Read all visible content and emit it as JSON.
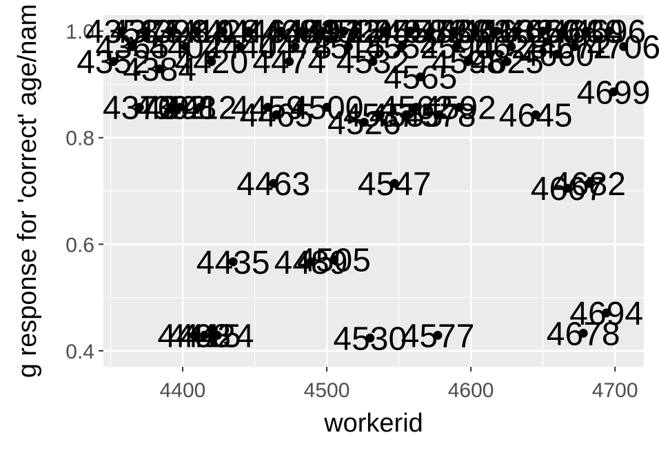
{
  "chart_data": {
    "type": "scatter",
    "title": "",
    "xlabel": "workerid",
    "ylabel": "g response for 'correct' age/nam",
    "xlim": [
      4345,
      4720
    ],
    "ylim": [
      0.37,
      1.03
    ],
    "x_ticks": [
      4400,
      4500,
      4600,
      4700
    ],
    "x_tick_labels": [
      "4400",
      "4500",
      "4600",
      "4700"
    ],
    "y_ticks": [
      0.4,
      0.6,
      0.8,
      1.0
    ],
    "y_tick_labels": [
      "0.4",
      "0.6",
      "0.8",
      "1.0"
    ],
    "grid": true,
    "legend": "none",
    "colors": {
      "panel": "#ebebeb",
      "grid_major": "#ffffff",
      "point": "#000000",
      "label": "#000000",
      "tick_text": "#4d4d4d"
    },
    "points": [
      {
        "x": 4370,
        "y": 0.857,
        "label": "4370"
      },
      {
        "x": 4392,
        "y": 0.857,
        "label": "4392"
      },
      {
        "x": 4398,
        "y": 0.857,
        "label": "4398"
      },
      {
        "x": 4412,
        "y": 0.857,
        "label": "4412"
      },
      {
        "x": 4459,
        "y": 0.857,
        "label": "4459"
      },
      {
        "x": 4465,
        "y": 0.843,
        "label": "4465"
      },
      {
        "x": 4500,
        "y": 0.857,
        "label": "4500"
      },
      {
        "x": 4526,
        "y": 0.829,
        "label": "4526"
      },
      {
        "x": 4537,
        "y": 0.843,
        "label": "4537"
      },
      {
        "x": 4555,
        "y": 0.843,
        "label": "4555"
      },
      {
        "x": 4562,
        "y": 0.857,
        "label": "4562"
      },
      {
        "x": 4578,
        "y": 0.843,
        "label": "4578"
      },
      {
        "x": 4592,
        "y": 0.857,
        "label": "4592"
      },
      {
        "x": 4645,
        "y": 0.843,
        "label": "4645"
      },
      {
        "x": 4565,
        "y": 0.914,
        "label": "4565"
      },
      {
        "x": 4384,
        "y": 0.929,
        "label": "4384"
      },
      {
        "x": 4625,
        "y": 0.943,
        "label": "4625"
      },
      {
        "x": 4699,
        "y": 0.886,
        "label": "4699"
      },
      {
        "x": 4463,
        "y": 0.714,
        "label": "4463"
      },
      {
        "x": 4547,
        "y": 0.714,
        "label": "4547"
      },
      {
        "x": 4667,
        "y": 0.705,
        "label": "4667"
      },
      {
        "x": 4682,
        "y": 0.714,
        "label": "4682"
      },
      {
        "x": 4435,
        "y": 0.567,
        "label": "4435"
      },
      {
        "x": 4489,
        "y": 0.567,
        "label": "4489"
      },
      {
        "x": 4505,
        "y": 0.571,
        "label": "4505"
      },
      {
        "x": 4694,
        "y": 0.471,
        "label": "4694"
      },
      {
        "x": 4678,
        "y": 0.433,
        "label": "4678"
      },
      {
        "x": 4408,
        "y": 0.429,
        "label": "4408"
      },
      {
        "x": 4415,
        "y": 0.429,
        "label": "4415"
      },
      {
        "x": 4424,
        "y": 0.429,
        "label": "4424"
      },
      {
        "x": 4530,
        "y": 0.424,
        "label": "4530"
      },
      {
        "x": 4577,
        "y": 0.429,
        "label": "4577"
      },
      {
        "x": 4358,
        "y": 1.0,
        "label": "4358"
      },
      {
        "x": 4375,
        "y": 1.0,
        "label": "4375"
      },
      {
        "x": 4393,
        "y": 1.0,
        "label": "4393"
      },
      {
        "x": 4410,
        "y": 1.0,
        "label": "4410"
      },
      {
        "x": 4428,
        "y": 1.0,
        "label": "4428"
      },
      {
        "x": 4446,
        "y": 1.0,
        "label": "4446"
      },
      {
        "x": 4468,
        "y": 1.0,
        "label": "4468"
      },
      {
        "x": 4483,
        "y": 1.0,
        "label": "4483"
      },
      {
        "x": 4497,
        "y": 1.0,
        "label": "4497"
      },
      {
        "x": 4512,
        "y": 1.0,
        "label": "4512"
      },
      {
        "x": 4520,
        "y": 1.0,
        "label": "4520"
      },
      {
        "x": 4540,
        "y": 1.0,
        "label": "4540"
      },
      {
        "x": 4558,
        "y": 1.0,
        "label": "4558"
      },
      {
        "x": 4572,
        "y": 1.0,
        "label": "4572"
      },
      {
        "x": 4588,
        "y": 1.0,
        "label": "4588"
      },
      {
        "x": 4603,
        "y": 1.0,
        "label": "4603"
      },
      {
        "x": 4618,
        "y": 1.0,
        "label": "4618"
      },
      {
        "x": 4632,
        "y": 1.0,
        "label": "4632"
      },
      {
        "x": 4650,
        "y": 1.0,
        "label": "4650"
      },
      {
        "x": 4664,
        "y": 1.0,
        "label": "4664"
      },
      {
        "x": 4680,
        "y": 1.0,
        "label": "4680"
      },
      {
        "x": 4696,
        "y": 1.0,
        "label": "4696"
      },
      {
        "x": 4365,
        "y": 0.971,
        "label": "4365"
      },
      {
        "x": 4402,
        "y": 0.971,
        "label": "4402"
      },
      {
        "x": 4440,
        "y": 0.971,
        "label": "4440"
      },
      {
        "x": 4478,
        "y": 0.971,
        "label": "4478"
      },
      {
        "x": 4515,
        "y": 0.971,
        "label": "4515"
      },
      {
        "x": 4552,
        "y": 0.971,
        "label": "4552"
      },
      {
        "x": 4590,
        "y": 0.971,
        "label": "4590"
      },
      {
        "x": 4628,
        "y": 0.971,
        "label": "4628"
      },
      {
        "x": 4672,
        "y": 0.971,
        "label": "4672"
      },
      {
        "x": 4706,
        "y": 0.971,
        "label": "4706"
      },
      {
        "x": 4352,
        "y": 0.943,
        "label": "4352"
      },
      {
        "x": 4420,
        "y": 0.943,
        "label": "4420"
      },
      {
        "x": 4474,
        "y": 0.943,
        "label": "4474"
      },
      {
        "x": 4532,
        "y": 0.943,
        "label": "4532"
      },
      {
        "x": 4598,
        "y": 0.943,
        "label": "4598"
      },
      {
        "x": 4660,
        "y": 0.957,
        "label": "4660"
      }
    ]
  }
}
